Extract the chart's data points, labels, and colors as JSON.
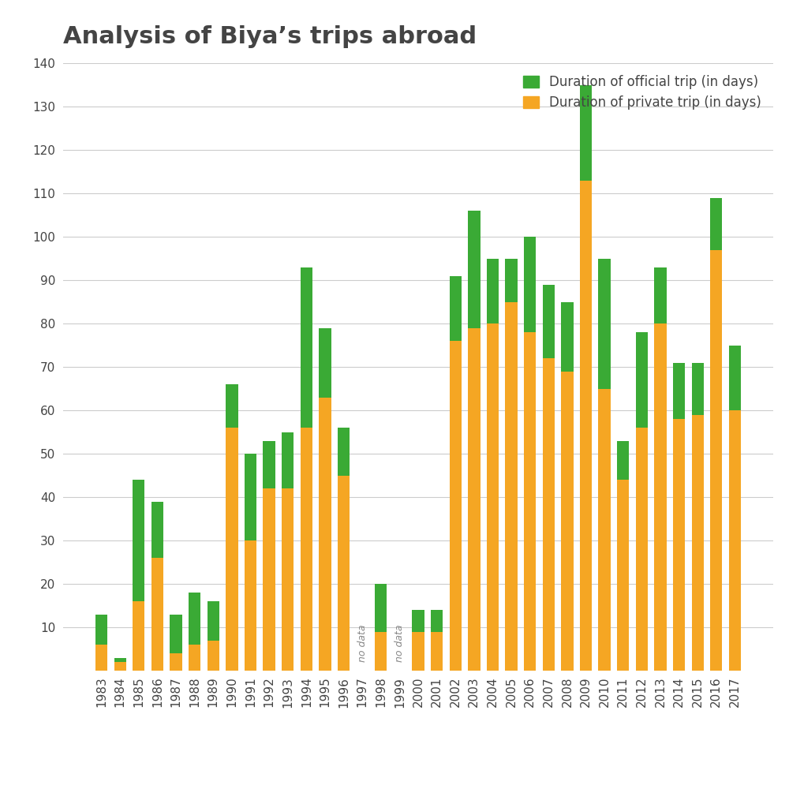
{
  "title": "Analysis of Biya’s trips abroad",
  "legend_official": "Duration of official trip (in days)",
  "legend_private": "Duration of private trip (in days)",
  "years": [
    "1983",
    "1984",
    "1985",
    "1986",
    "1987",
    "1988",
    "1989",
    "1990",
    "1991",
    "1992",
    "1993",
    "1994",
    "1995",
    "1996",
    "1997",
    "1998",
    "1999",
    "2000",
    "2001",
    "2002",
    "2003",
    "2004",
    "2005",
    "2006",
    "2007",
    "2008",
    "2009",
    "2010",
    "2011",
    "2012",
    "2013",
    "2014",
    "2015",
    "2016",
    "2017"
  ],
  "official": [
    7,
    1,
    28,
    13,
    9,
    12,
    9,
    10,
    20,
    11,
    13,
    37,
    16,
    11,
    null,
    11,
    null,
    5,
    5,
    15,
    27,
    15,
    10,
    22,
    17,
    16,
    22,
    30,
    9,
    22,
    13,
    13,
    12,
    12,
    15
  ],
  "private": [
    6,
    2,
    16,
    26,
    4,
    6,
    7,
    56,
    30,
    42,
    42,
    56,
    63,
    45,
    null,
    9,
    null,
    9,
    9,
    76,
    79,
    80,
    85,
    78,
    72,
    69,
    113,
    65,
    44,
    56,
    80,
    58,
    59,
    97,
    60
  ],
  "no_data_years": [
    "1997",
    "1999"
  ],
  "no_bar_years": [],
  "official_color": "#3aaa35",
  "private_color": "#f5a623",
  "background_color": "#ffffff",
  "ylim": [
    0,
    140
  ],
  "yticks": [
    0,
    10,
    20,
    30,
    40,
    50,
    60,
    70,
    80,
    90,
    100,
    110,
    120,
    130,
    140
  ],
  "title_fontsize": 22,
  "legend_fontsize": 12,
  "tick_fontsize": 11,
  "grid_color": "#cccccc",
  "text_color": "#444444",
  "nodata_text_color": "#888888"
}
